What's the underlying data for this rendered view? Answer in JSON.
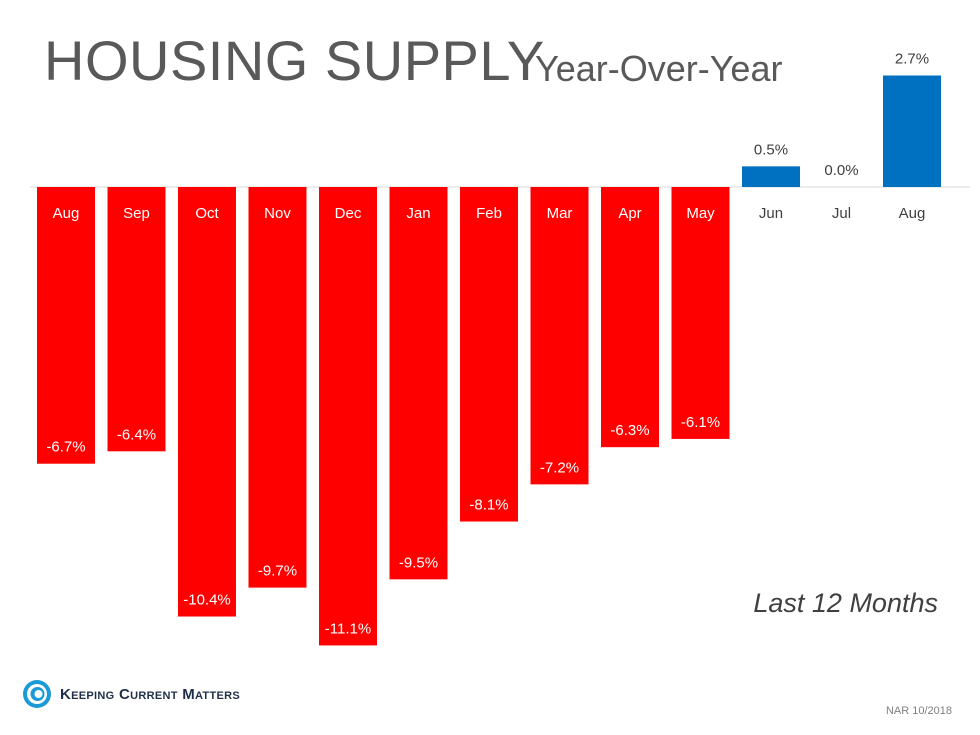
{
  "header": {
    "title": "HOUSING SUPPLY",
    "subtitle": "Year-Over-Year"
  },
  "note": "Last 12 Months",
  "source": "NAR 10/2018",
  "logo": {
    "text": "Keeping Current Matters",
    "icon": "spiral-logo-icon"
  },
  "colors": {
    "negative": "#ff0000",
    "positive": "#0070c0",
    "text_dark": "#404040"
  },
  "chart_data": {
    "type": "bar",
    "title": "HOUSING SUPPLY",
    "subtitle": "Year-Over-Year",
    "xlabel": "",
    "ylabel": "",
    "categories": [
      "Aug",
      "Sep",
      "Oct",
      "Nov",
      "Dec",
      "Jan",
      "Feb",
      "Mar",
      "Apr",
      "May",
      "Jun",
      "Jul",
      "Aug"
    ],
    "values": [
      -6.7,
      -6.4,
      -10.4,
      -9.7,
      -11.1,
      -9.5,
      -8.1,
      -7.2,
      -6.3,
      -6.1,
      0.5,
      0.0,
      2.7
    ],
    "value_labels": [
      "-6.7%",
      "-6.4%",
      "-10.4%",
      "-9.7%",
      "-11.1%",
      "-9.5%",
      "-8.1%",
      "-7.2%",
      "-6.3%",
      "-6.1%",
      "0.5%",
      "0.0%",
      "2.7%"
    ],
    "grid": false,
    "legend": "none"
  }
}
